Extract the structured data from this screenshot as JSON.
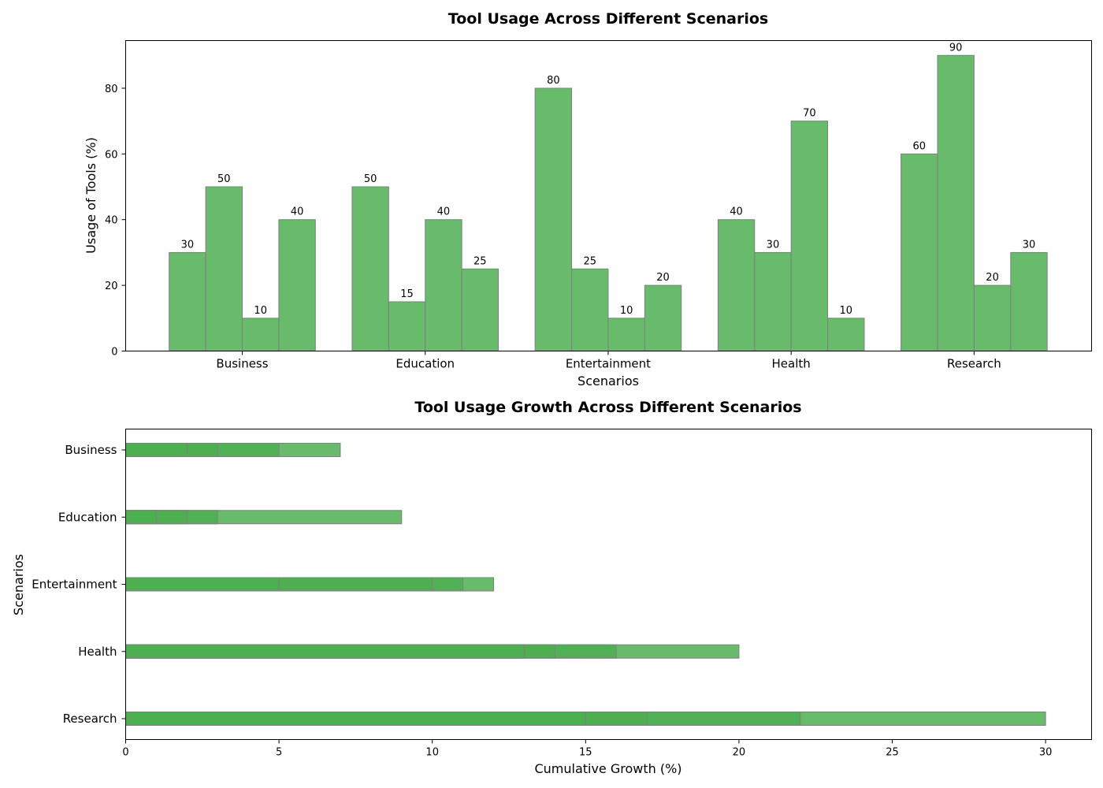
{
  "chart_data": [
    {
      "type": "bar",
      "title": "Tool Usage Across Different Scenarios",
      "xlabel": "Scenarios",
      "ylabel": "Usage of Tools (%)",
      "categories": [
        "Business",
        "Education",
        "Entertainment",
        "Health",
        "Research"
      ],
      "series": [
        {
          "values": [
            30,
            50,
            80,
            40,
            60
          ]
        },
        {
          "values": [
            50,
            15,
            25,
            30,
            90
          ]
        },
        {
          "values": [
            10,
            40,
            10,
            70,
            20
          ]
        },
        {
          "values": [
            40,
            25,
            20,
            10,
            30
          ]
        }
      ],
      "ylim": [
        0,
        94.5
      ],
      "yticks": [
        0,
        20,
        40,
        60,
        80
      ],
      "data_labels": true,
      "grid": false,
      "bar_color": "#4caf50",
      "edge_color": "#808080"
    },
    {
      "type": "bar",
      "orientation": "horizontal",
      "stacked": false,
      "title": "Tool Usage Growth Across Different Scenarios",
      "xlabel": "Cumulative Growth (%)",
      "ylabel": "Scenarios",
      "categories": [
        "Business",
        "Education",
        "Entertainment",
        "Health",
        "Research"
      ],
      "cumulative_values": [
        [
          2,
          3,
          5,
          7
        ],
        [
          1,
          2,
          3,
          9
        ],
        [
          5,
          10,
          11,
          12
        ],
        [
          13,
          14,
          16,
          20
        ],
        [
          15,
          17,
          22,
          30
        ]
      ],
      "xlim": [
        0,
        31.5
      ],
      "xticks": [
        0,
        5,
        10,
        15,
        20,
        25,
        30
      ],
      "grid": false,
      "bar_color": "#4caf50",
      "edge_color": "#808080"
    }
  ]
}
